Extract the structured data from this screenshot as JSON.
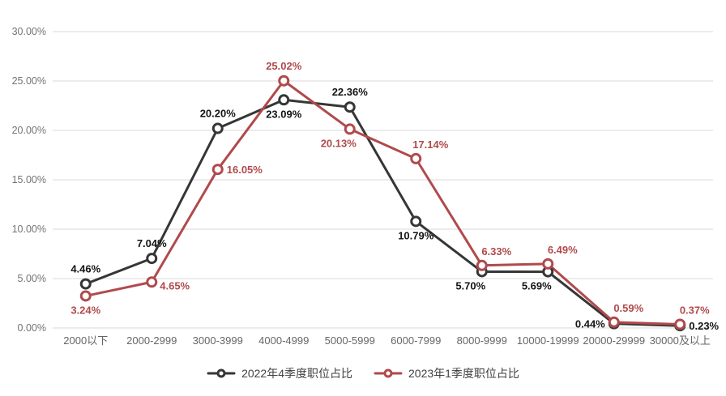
{
  "chart_data": {
    "type": "line",
    "categories": [
      "2000以下",
      "2000-2999",
      "3000-3999",
      "4000-4999",
      "5000-5999",
      "6000-7999",
      "8000-9999",
      "10000-19999",
      "20000-29999",
      "30000及以上"
    ],
    "series": [
      {
        "name": "2022年4季度职位占比",
        "color": "#363636",
        "label_color": "#141414",
        "values": [
          4.46,
          7.04,
          20.2,
          23.09,
          22.36,
          10.79,
          5.7,
          5.69,
          0.44,
          0.23
        ],
        "label_positions": [
          "above",
          "above",
          "above",
          "below",
          "above",
          "below",
          "below-left",
          "below-left",
          "left",
          "right"
        ]
      },
      {
        "name": "2023年1季度职位占比",
        "color": "#B04A4C",
        "label_color": "#B04A4C",
        "values": [
          3.24,
          4.65,
          16.05,
          25.02,
          20.13,
          17.14,
          6.33,
          6.49,
          0.59,
          0.37
        ],
        "label_positions": [
          "below",
          "below-right",
          "right",
          "above",
          "below-left",
          "above-right",
          "above-right",
          "above-right",
          "above-right",
          "above-right"
        ]
      }
    ],
    "title": "",
    "xlabel": "",
    "ylabel": "",
    "ylim": [
      0,
      30
    ],
    "y_ticks": [
      "0.00%",
      "5.00%",
      "10.00%",
      "15.00%",
      "20.00%",
      "25.00%",
      "30.00%"
    ],
    "value_suffix": "%",
    "grid": "horizontal",
    "grid_color": "#D9D9D9",
    "axis_text_color": "#737373",
    "marker_fill": "#ffffff",
    "legend_position": "bottom"
  }
}
